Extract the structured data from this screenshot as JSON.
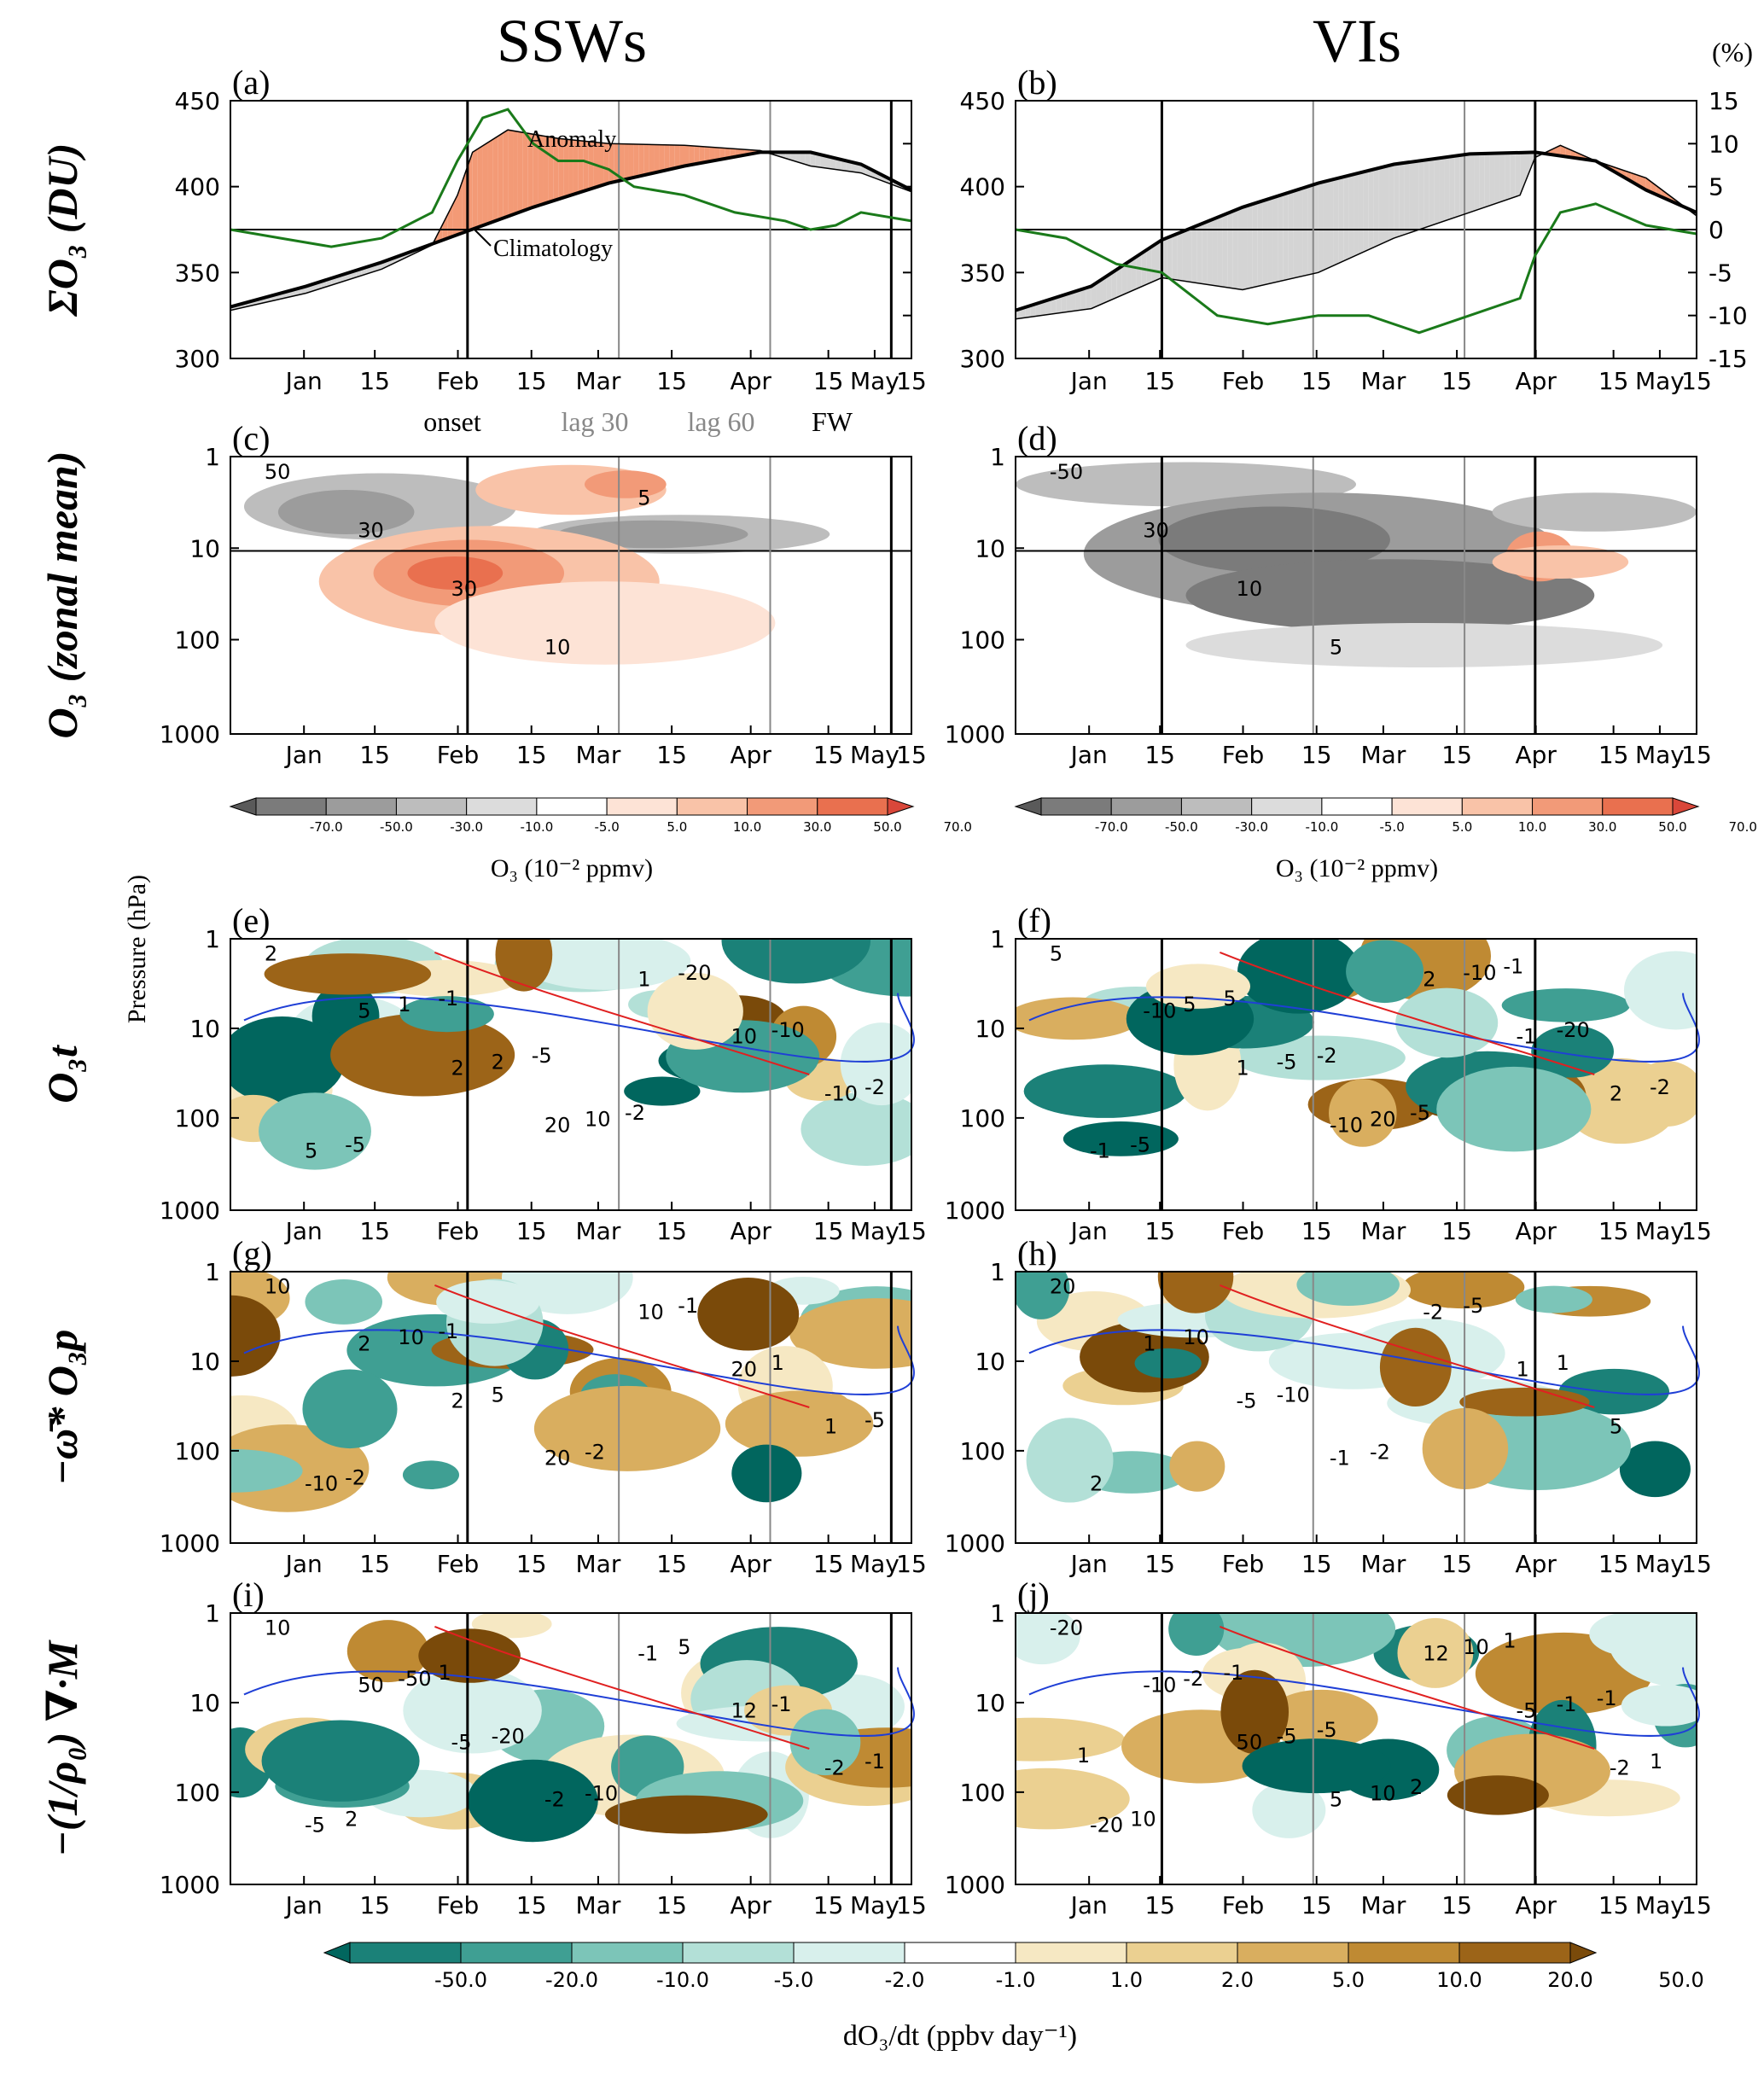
{
  "columns": [
    {
      "key": "ssw",
      "title": "SSWs"
    },
    {
      "key": "vi",
      "title": "VIs"
    }
  ],
  "row_labels": [
    "ΣO₃ (DU)",
    "O₃ (zonal mean)",
    "O₃t",
    "−ω̄* O₃p",
    "−(1/ρ₀) ∇·M"
  ],
  "pressure_label": "Pressure (hPa)",
  "percent_label": "(%)",
  "months": [
    "Jan",
    "15",
    "Feb",
    "15",
    "Mar",
    "15",
    "Apr",
    "15",
    "May",
    "15"
  ],
  "event_labels": [
    "onset",
    "lag 30",
    "lag 60",
    "FW"
  ],
  "panel_letters": [
    "(a)",
    "(b)",
    "(c)",
    "(d)",
    "(e)",
    "(f)",
    "(g)",
    "(h)",
    "(i)",
    "(j)"
  ],
  "colorbar_o3": {
    "ticks": [
      "-70.0",
      "-50.0",
      "-30.0",
      "-10.0",
      "-5.0",
      "5.0",
      "10.0",
      "30.0",
      "50.0",
      "70.0"
    ],
    "label": "O₃ (10⁻² ppmv)",
    "colors": [
      "#5a5a5a",
      "#7b7b7b",
      "#9c9c9c",
      "#bdbdbd",
      "#dcdcdc",
      "#ffffff",
      "#fde3d6",
      "#f9c3a8",
      "#f29a78",
      "#e9704f",
      "#d9473a"
    ]
  },
  "colorbar_tend": {
    "ticks": [
      "-50.0",
      "-20.0",
      "-10.0",
      "-5.0",
      "-2.0",
      "-1.0",
      "1.0",
      "2.0",
      "5.0",
      "10.0",
      "20.0",
      "50.0"
    ],
    "label": "dO₃/dt (ppbv day⁻¹)",
    "colors": [
      "#01665e",
      "#1b8178",
      "#3f9f93",
      "#7cc5b8",
      "#b3e0d7",
      "#d8f0ec",
      "#ffffff",
      "#f6e8c3",
      "#ebd091",
      "#d9ae5f",
      "#bf8a33",
      "#9c6418",
      "#7a4a0a"
    ]
  },
  "chart_data": [
    {
      "panel": "(a)",
      "type": "area",
      "x_range_days": [
        0,
        135
      ],
      "ylim": [
        300,
        450
      ],
      "y_ticks": [
        "300",
        "350",
        "400",
        "450"
      ],
      "y2lim": [
        -15,
        15
      ],
      "y2_ticks": [
        "-15",
        "-10",
        "-5",
        "0",
        "5",
        "10",
        "15"
      ],
      "annotations": [
        "Anomaly",
        "Climatology"
      ],
      "event_day": {
        "onset": 47,
        "lag30": 77,
        "lag60": 107,
        "FW": 131
      },
      "climatology": [
        [
          0,
          330
        ],
        [
          15,
          342
        ],
        [
          30,
          356
        ],
        [
          45,
          372
        ],
        [
          60,
          388
        ],
        [
          75,
          402
        ],
        [
          90,
          412
        ],
        [
          105,
          420
        ],
        [
          115,
          420
        ],
        [
          125,
          413
        ],
        [
          135,
          398
        ]
      ],
      "observed": [
        [
          0,
          328
        ],
        [
          15,
          338
        ],
        [
          30,
          352
        ],
        [
          40,
          366
        ],
        [
          45,
          395
        ],
        [
          48,
          420
        ],
        [
          55,
          433
        ],
        [
          65,
          428
        ],
        [
          75,
          425
        ],
        [
          90,
          424
        ],
        [
          105,
          421
        ],
        [
          115,
          412
        ],
        [
          125,
          408
        ],
        [
          135,
          397
        ]
      ],
      "percent_anomaly": [
        [
          0,
          0
        ],
        [
          10,
          -1
        ],
        [
          20,
          -2
        ],
        [
          30,
          -1
        ],
        [
          40,
          2
        ],
        [
          45,
          8
        ],
        [
          50,
          13
        ],
        [
          55,
          14
        ],
        [
          60,
          10
        ],
        [
          65,
          8
        ],
        [
          70,
          8
        ],
        [
          75,
          7
        ],
        [
          80,
          5
        ],
        [
          90,
          4
        ],
        [
          100,
          2
        ],
        [
          110,
          1
        ],
        [
          115,
          0
        ],
        [
          120,
          0.5
        ],
        [
          125,
          2
        ],
        [
          135,
          1
        ]
      ]
    },
    {
      "panel": "(b)",
      "type": "area",
      "x_range_days": [
        0,
        135
      ],
      "ylim": [
        300,
        450
      ],
      "y_ticks": [
        "300",
        "350",
        "400",
        "450"
      ],
      "y2lim": [
        -15,
        15
      ],
      "y2_ticks": [
        "-15",
        "-10",
        "-5",
        "0",
        "5",
        "10",
        "15"
      ],
      "event_day": {
        "onset": 29,
        "lag30": 59,
        "lag60": 89,
        "FW": 103
      },
      "climatology": [
        [
          0,
          328
        ],
        [
          15,
          342
        ],
        [
          29,
          369
        ],
        [
          45,
          388
        ],
        [
          60,
          402
        ],
        [
          75,
          413
        ],
        [
          90,
          419
        ],
        [
          103,
          420
        ],
        [
          115,
          415
        ],
        [
          125,
          398
        ],
        [
          135,
          385
        ]
      ],
      "observed": [
        [
          0,
          323
        ],
        [
          15,
          329
        ],
        [
          29,
          347
        ],
        [
          45,
          340
        ],
        [
          60,
          350
        ],
        [
          75,
          370
        ],
        [
          90,
          385
        ],
        [
          100,
          395
        ],
        [
          103,
          417
        ],
        [
          108,
          424
        ],
        [
          115,
          415
        ],
        [
          125,
          405
        ],
        [
          135,
          383
        ]
      ],
      "percent_anomaly": [
        [
          0,
          0
        ],
        [
          10,
          -1
        ],
        [
          20,
          -4
        ],
        [
          29,
          -5
        ],
        [
          40,
          -10
        ],
        [
          50,
          -11
        ],
        [
          60,
          -10
        ],
        [
          70,
          -10
        ],
        [
          80,
          -12
        ],
        [
          90,
          -10
        ],
        [
          100,
          -8
        ],
        [
          103,
          -3
        ],
        [
          108,
          2
        ],
        [
          115,
          3
        ],
        [
          125,
          0.5
        ],
        [
          135,
          -0.5
        ]
      ]
    },
    {
      "panel": "(c)",
      "type": "heatmap",
      "variable": "O3 anomaly",
      "units": "10^-2 ppmv",
      "contour_labels": [
        "50",
        "30",
        "30",
        "10",
        "5"
      ]
    },
    {
      "panel": "(d)",
      "type": "heatmap",
      "variable": "O3 anomaly",
      "units": "10^-2 ppmv",
      "contour_labels": [
        "-50",
        "30",
        "10",
        "5"
      ]
    },
    {
      "panel": "(e)",
      "type": "heatmap",
      "variable": "O3t",
      "contour_labels": [
        "2",
        "5",
        "2",
        "20",
        "1",
        "10",
        "-10",
        "5",
        "1",
        "2",
        "10",
        "-20",
        "-10",
        "-2",
        "-5",
        "-1",
        "-5",
        "-2"
      ]
    },
    {
      "panel": "(f)",
      "type": "heatmap",
      "variable": "O3t",
      "contour_labels": [
        "5",
        "-10",
        "1",
        "-10",
        "2",
        "-1",
        "2",
        "-1",
        "5",
        "-5",
        "20",
        "-10",
        "-20",
        "-2",
        "-5",
        "5",
        "-2",
        "-5",
        "-1"
      ]
    },
    {
      "panel": "(g)",
      "type": "heatmap",
      "variable": "-w*O3p",
      "contour_labels": [
        "10",
        "2",
        "2",
        "20",
        "10",
        "20",
        "1",
        "-10",
        "10",
        "5",
        "-2",
        "-1",
        "1",
        "-5",
        "-2",
        "-1"
      ]
    },
    {
      "panel": "(h)",
      "type": "heatmap",
      "variable": "-w*O3p",
      "contour_labels": [
        "20",
        "1",
        "-5",
        "-1",
        "-2",
        "1",
        "5",
        "2",
        "10",
        "-10",
        "-2",
        "-5",
        "1"
      ]
    },
    {
      "panel": "(i)",
      "type": "heatmap",
      "variable": "-1/rho0 divM",
      "contour_labels": [
        "10",
        "50",
        "-5",
        "-2",
        "-1",
        "12",
        "-2",
        "-5",
        "-50",
        "-20",
        "-10",
        "5",
        "-1",
        "-1",
        "2",
        "1"
      ]
    },
    {
      "panel": "(j)",
      "type": "heatmap",
      "variable": "-1/rho0 divM",
      "contour_labels": [
        "-20",
        "-10",
        "50",
        "5",
        "12",
        "-5",
        "-2",
        "-20",
        "-2",
        "-5",
        "10",
        "10",
        "-1",
        "1",
        "10",
        "-1",
        "-5",
        "2",
        "1",
        "-1",
        "1"
      ]
    }
  ]
}
